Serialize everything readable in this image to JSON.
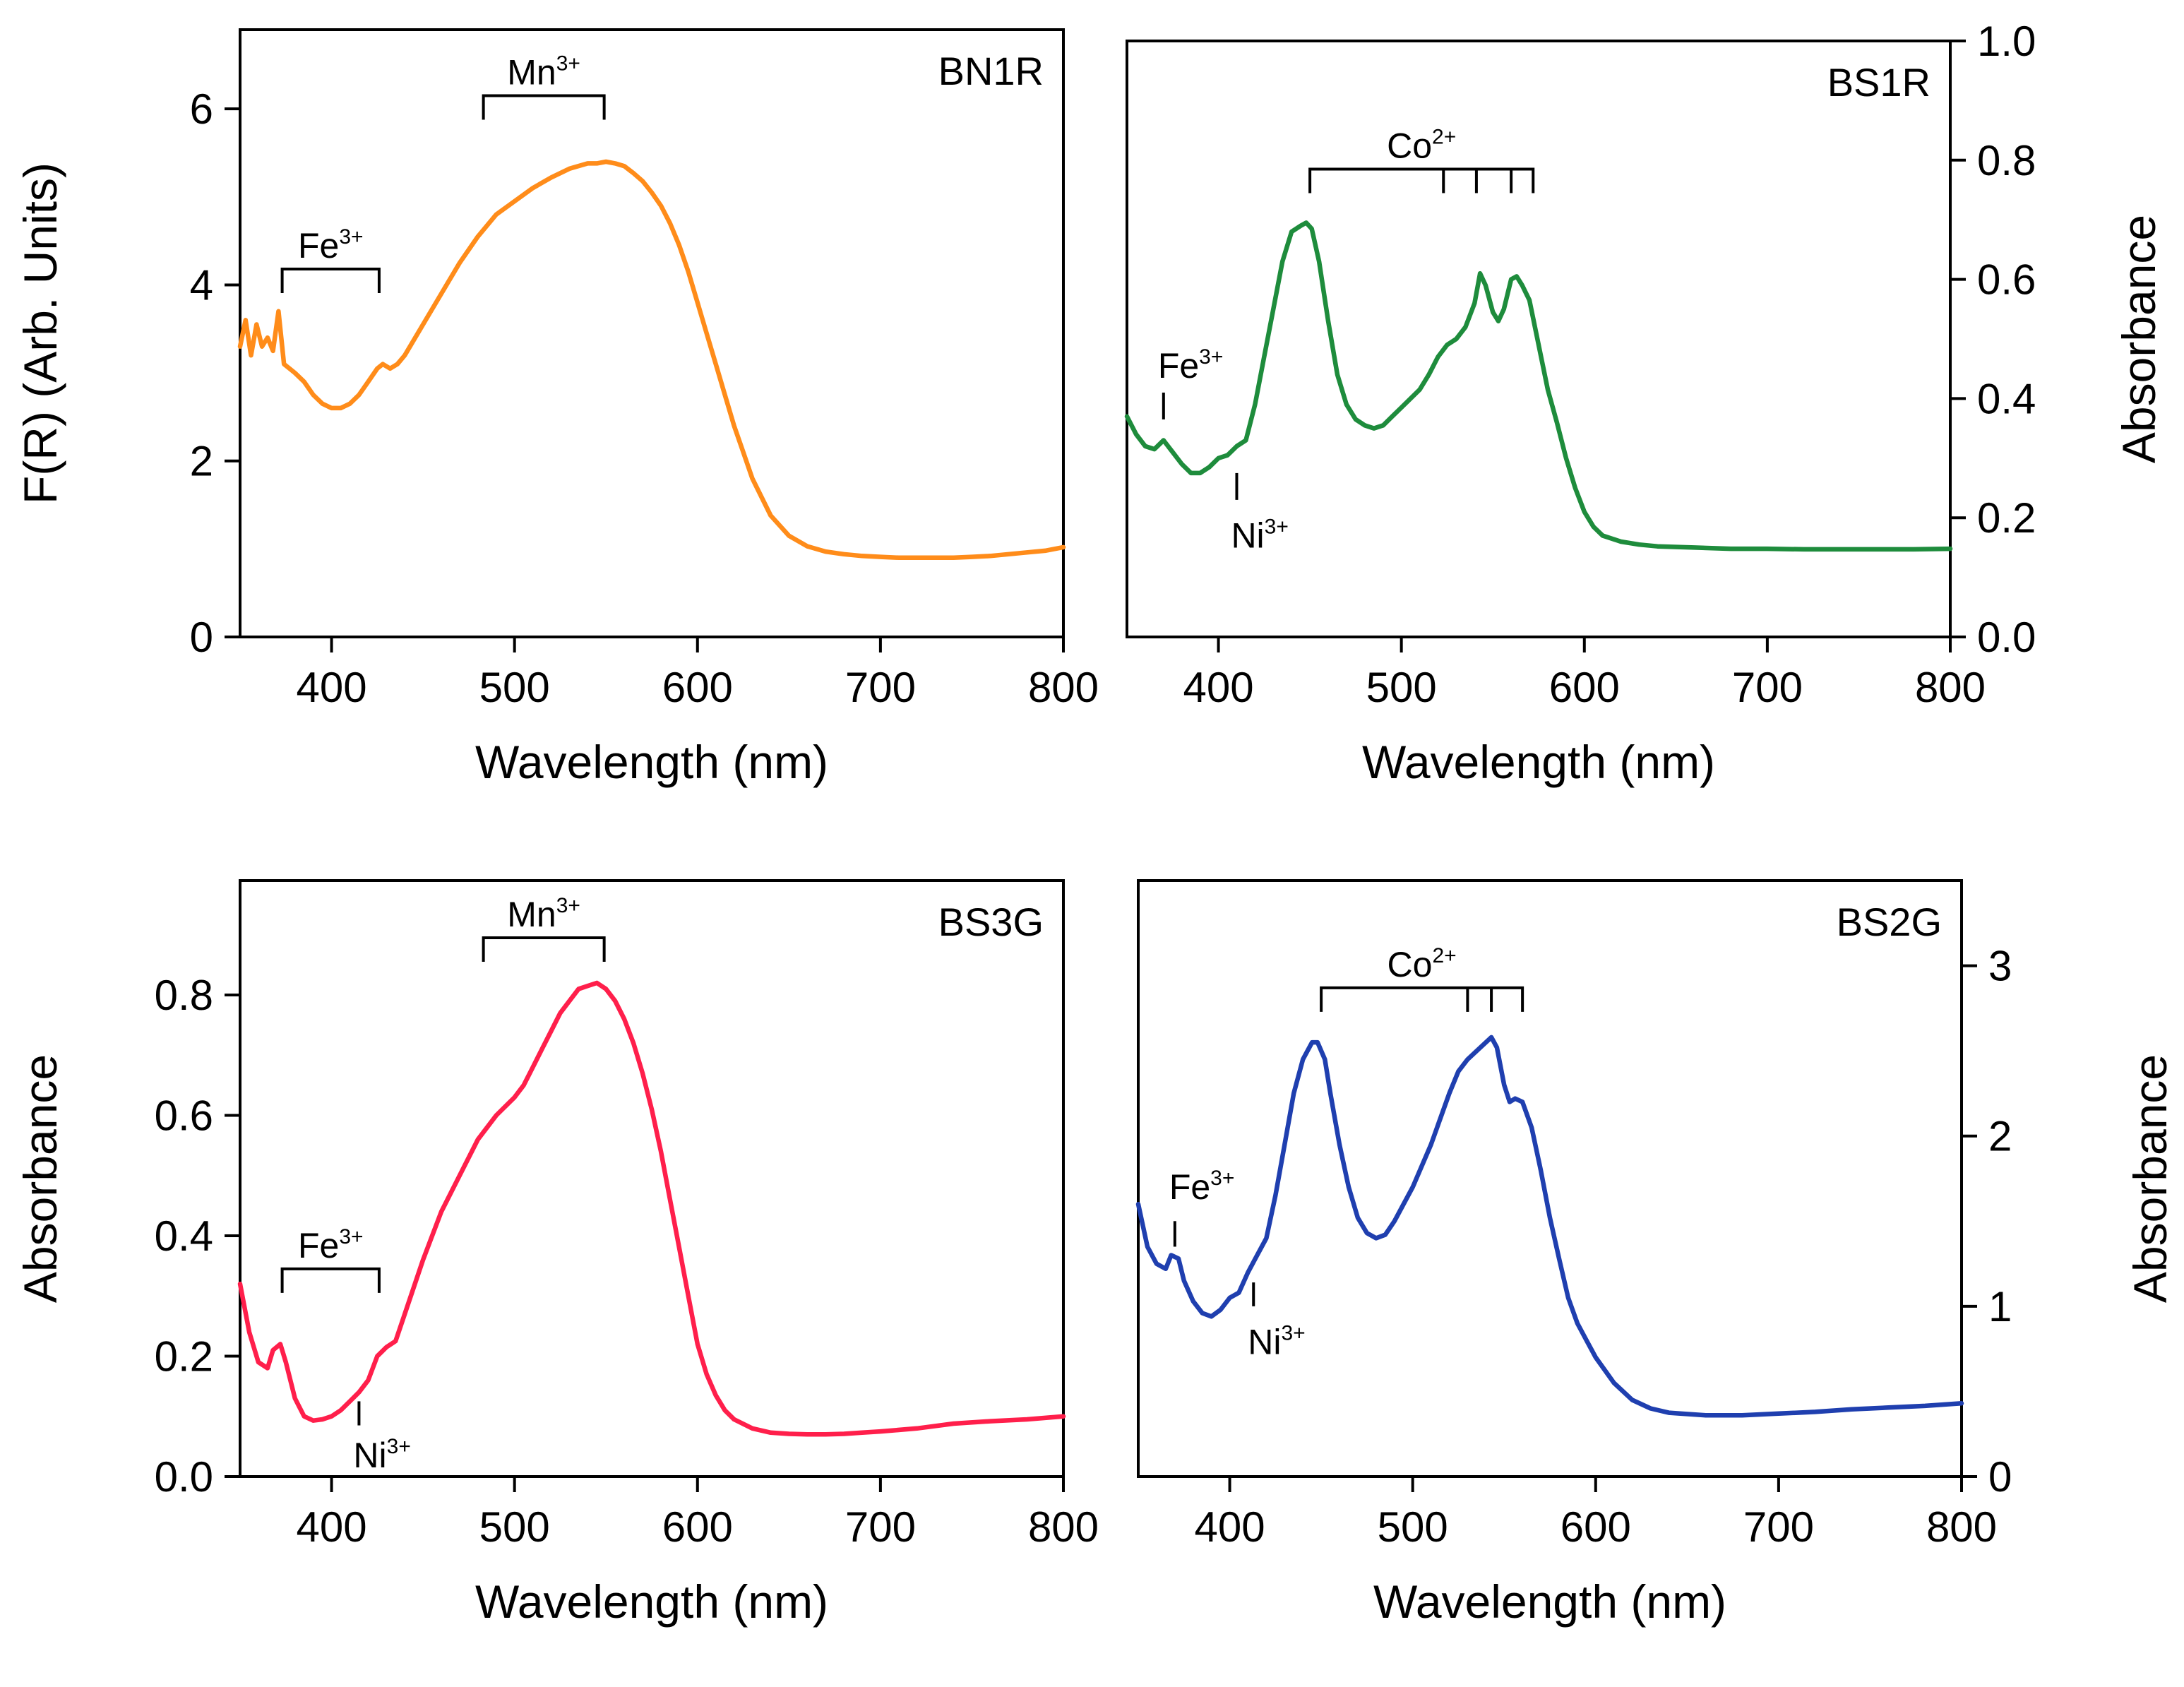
{
  "chart_data": [
    {
      "type": "line",
      "sample": "BN1R",
      "xlabel": "Wavelength (nm)",
      "ylabel": "F(R) (Arb. Units)",
      "y_axis_side": "left",
      "xlim": [
        350,
        800
      ],
      "ylim": [
        0,
        6.9
      ],
      "x_ticks": [
        400,
        500,
        600,
        700,
        800
      ],
      "y_ticks": [
        0,
        2,
        4,
        6
      ],
      "y_tick_labels": [
        "0",
        "2",
        "4",
        "6"
      ],
      "color": "#ff8c1a",
      "series": [
        {
          "name": "BN1R",
          "x": [
            350,
            353,
            356,
            359,
            362,
            365,
            368,
            371,
            374,
            377,
            380,
            385,
            390,
            395,
            400,
            405,
            410,
            415,
            420,
            425,
            428,
            432,
            436,
            440,
            450,
            460,
            470,
            480,
            490,
            500,
            510,
            520,
            530,
            540,
            545,
            550,
            555,
            560,
            565,
            570,
            575,
            580,
            585,
            590,
            595,
            600,
            605,
            610,
            615,
            620,
            625,
            630,
            640,
            650,
            660,
            670,
            680,
            690,
            700,
            710,
            720,
            730,
            740,
            750,
            760,
            770,
            780,
            790,
            800
          ],
          "y": [
            3.3,
            3.6,
            3.2,
            3.55,
            3.3,
            3.4,
            3.25,
            3.7,
            3.1,
            3.05,
            3.0,
            2.9,
            2.75,
            2.65,
            2.6,
            2.6,
            2.65,
            2.75,
            2.9,
            3.05,
            3.1,
            3.05,
            3.1,
            3.2,
            3.55,
            3.9,
            4.25,
            4.55,
            4.8,
            4.95,
            5.1,
            5.22,
            5.32,
            5.38,
            5.38,
            5.4,
            5.38,
            5.35,
            5.27,
            5.18,
            5.05,
            4.9,
            4.7,
            4.45,
            4.15,
            3.8,
            3.45,
            3.1,
            2.75,
            2.4,
            2.1,
            1.8,
            1.38,
            1.15,
            1.03,
            0.97,
            0.94,
            0.92,
            0.91,
            0.9,
            0.9,
            0.9,
            0.9,
            0.91,
            0.92,
            0.94,
            0.96,
            0.98,
            1.02
          ]
        }
      ],
      "annotations": [
        {
          "type": "bracket",
          "ion": "Fe",
          "charge": "3+",
          "x_start": 373,
          "x_end": 426,
          "y": 4.18,
          "ticks_at": []
        },
        {
          "type": "bracket",
          "ion": "Mn",
          "charge": "3+",
          "x_start": 483,
          "x_end": 549,
          "y": 6.15,
          "ticks_at": []
        }
      ]
    },
    {
      "type": "line",
      "sample": "BS1R",
      "xlabel": "Wavelength (nm)",
      "ylabel": "Absorbance",
      "y_axis_side": "right",
      "xlim": [
        350,
        800
      ],
      "ylim": [
        0,
        1.0
      ],
      "x_ticks": [
        400,
        500,
        600,
        700,
        800
      ],
      "y_ticks": [
        0,
        0.2,
        0.4,
        0.6,
        0.8,
        1.0
      ],
      "y_tick_labels": [
        "0.0",
        "0.2",
        "0.4",
        "0.6",
        "0.8",
        "1.0"
      ],
      "color": "#1e8c3c",
      "series": [
        {
          "name": "BS1R",
          "x": [
            350,
            355,
            360,
            365,
            370,
            375,
            380,
            385,
            390,
            395,
            400,
            405,
            410,
            415,
            420,
            425,
            430,
            435,
            440,
            445,
            448,
            451,
            455,
            460,
            465,
            470,
            475,
            480,
            485,
            490,
            495,
            500,
            505,
            510,
            515,
            520,
            525,
            530,
            535,
            540,
            543,
            546,
            550,
            553,
            556,
            560,
            563,
            566,
            570,
            575,
            580,
            585,
            590,
            595,
            600,
            605,
            610,
            620,
            630,
            640,
            660,
            680,
            700,
            720,
            740,
            760,
            780,
            800
          ],
          "y": [
            0.37,
            0.34,
            0.32,
            0.315,
            0.33,
            0.31,
            0.29,
            0.275,
            0.275,
            0.285,
            0.3,
            0.305,
            0.32,
            0.33,
            0.39,
            0.47,
            0.55,
            0.63,
            0.68,
            0.69,
            0.695,
            0.685,
            0.63,
            0.53,
            0.44,
            0.39,
            0.365,
            0.355,
            0.35,
            0.355,
            0.37,
            0.385,
            0.4,
            0.415,
            0.44,
            0.47,
            0.49,
            0.5,
            0.52,
            0.56,
            0.61,
            0.59,
            0.545,
            0.53,
            0.55,
            0.6,
            0.605,
            0.59,
            0.565,
            0.49,
            0.415,
            0.36,
            0.3,
            0.25,
            0.21,
            0.185,
            0.17,
            0.16,
            0.155,
            0.152,
            0.15,
            0.148,
            0.148,
            0.147,
            0.147,
            0.147,
            0.147,
            0.148
          ]
        }
      ],
      "annotations": [
        {
          "type": "bracket",
          "ion": "Co",
          "charge": "2+",
          "x_start": 450,
          "x_end": 572,
          "y": 0.785,
          "ticks_at": [
            523,
            541,
            560
          ]
        },
        {
          "type": "marker",
          "ion": "Fe",
          "charge": "3+",
          "x": 370,
          "label_position": "above",
          "marker_top": 0.41,
          "marker_bottom": 0.365,
          "label_y": 0.435
        },
        {
          "type": "marker",
          "ion": "Ni",
          "charge": "3+",
          "x": 410,
          "label_position": "below",
          "marker_top": 0.275,
          "marker_bottom": 0.23,
          "label_y": 0.15
        }
      ]
    },
    {
      "type": "line",
      "sample": "BS3G",
      "xlabel": "Wavelength (nm)",
      "ylabel": "Absorbance",
      "y_axis_side": "left",
      "xlim": [
        350,
        800
      ],
      "ylim": [
        0,
        0.99
      ],
      "x_ticks": [
        400,
        500,
        600,
        700,
        800
      ],
      "y_ticks": [
        0,
        0.2,
        0.4,
        0.6,
        0.8
      ],
      "y_tick_labels": [
        "0.0",
        "0.2",
        "0.4",
        "0.6",
        "0.8"
      ],
      "color": "#ff1f4b",
      "series": [
        {
          "name": "BS3G",
          "x": [
            350,
            355,
            360,
            365,
            368,
            372,
            375,
            380,
            385,
            390,
            395,
            400,
            405,
            410,
            415,
            420,
            425,
            430,
            435,
            440,
            450,
            460,
            470,
            480,
            490,
            500,
            505,
            510,
            515,
            520,
            525,
            530,
            535,
            540,
            545,
            550,
            555,
            560,
            565,
            570,
            575,
            580,
            585,
            590,
            595,
            600,
            605,
            610,
            615,
            620,
            630,
            640,
            650,
            660,
            670,
            680,
            690,
            700,
            720,
            740,
            760,
            780,
            800
          ],
          "y": [
            0.32,
            0.24,
            0.19,
            0.18,
            0.21,
            0.22,
            0.19,
            0.13,
            0.1,
            0.093,
            0.095,
            0.1,
            0.11,
            0.125,
            0.14,
            0.16,
            0.2,
            0.215,
            0.225,
            0.27,
            0.36,
            0.44,
            0.5,
            0.56,
            0.6,
            0.63,
            0.65,
            0.68,
            0.71,
            0.74,
            0.77,
            0.79,
            0.81,
            0.815,
            0.82,
            0.81,
            0.79,
            0.76,
            0.72,
            0.67,
            0.61,
            0.54,
            0.46,
            0.38,
            0.3,
            0.22,
            0.17,
            0.135,
            0.11,
            0.095,
            0.08,
            0.073,
            0.071,
            0.07,
            0.07,
            0.071,
            0.073,
            0.075,
            0.08,
            0.088,
            0.092,
            0.095,
            0.1
          ]
        }
      ],
      "annotations": [
        {
          "type": "bracket",
          "ion": "Fe",
          "charge": "3+",
          "x_start": 373,
          "x_end": 426,
          "y": 0.345,
          "ticks_at": []
        },
        {
          "type": "bracket",
          "ion": "Mn",
          "charge": "3+",
          "x_start": 483,
          "x_end": 549,
          "y": 0.895,
          "ticks_at": []
        },
        {
          "type": "marker",
          "ion": "Ni",
          "charge": "3+",
          "x": 415,
          "label_position": "below",
          "marker_top": 0.125,
          "marker_bottom": 0.085,
          "label_y": 0.015
        }
      ]
    },
    {
      "type": "line",
      "sample": "BS2G",
      "xlabel": "Wavelength (nm)",
      "ylabel": "Absorbance",
      "y_axis_side": "right",
      "xlim": [
        350,
        800
      ],
      "ylim": [
        0,
        3.5
      ],
      "x_ticks": [
        400,
        500,
        600,
        700,
        800
      ],
      "y_ticks": [
        0,
        1,
        2,
        3
      ],
      "y_tick_labels": [
        "0",
        "1",
        "2",
        "3"
      ],
      "color": "#1f3faf",
      "series": [
        {
          "name": "BS2G",
          "x": [
            350,
            355,
            360,
            365,
            368,
            372,
            375,
            380,
            385,
            390,
            395,
            400,
            405,
            410,
            415,
            420,
            425,
            430,
            435,
            440,
            445,
            448,
            452,
            455,
            460,
            465,
            470,
            475,
            480,
            485,
            490,
            500,
            510,
            520,
            525,
            530,
            535,
            540,
            543,
            546,
            550,
            553,
            556,
            560,
            565,
            570,
            575,
            580,
            585,
            590,
            595,
            600,
            610,
            620,
            630,
            640,
            660,
            680,
            700,
            720,
            740,
            760,
            780,
            800
          ],
          "y": [
            1.6,
            1.35,
            1.25,
            1.22,
            1.3,
            1.28,
            1.15,
            1.03,
            0.96,
            0.94,
            0.98,
            1.05,
            1.08,
            1.2,
            1.3,
            1.4,
            1.65,
            1.95,
            2.25,
            2.45,
            2.55,
            2.55,
            2.45,
            2.25,
            1.95,
            1.7,
            1.52,
            1.43,
            1.4,
            1.42,
            1.5,
            1.7,
            1.95,
            2.25,
            2.38,
            2.45,
            2.5,
            2.55,
            2.58,
            2.52,
            2.3,
            2.2,
            2.22,
            2.2,
            2.05,
            1.8,
            1.52,
            1.28,
            1.05,
            0.9,
            0.8,
            0.7,
            0.55,
            0.45,
            0.4,
            0.375,
            0.36,
            0.36,
            0.37,
            0.38,
            0.395,
            0.405,
            0.415,
            0.43
          ]
        }
      ],
      "annotations": [
        {
          "type": "bracket",
          "ion": "Co",
          "charge": "2+",
          "x_start": 450,
          "x_end": 560,
          "y": 2.87,
          "ticks_at": [
            530,
            543
          ]
        },
        {
          "type": "marker",
          "ion": "Fe",
          "charge": "3+",
          "x": 370,
          "label_position": "above",
          "marker_top": 1.5,
          "marker_bottom": 1.35,
          "label_y": 1.63
        },
        {
          "type": "marker",
          "ion": "Ni",
          "charge": "3+",
          "x": 413,
          "label_position": "below",
          "marker_top": 1.14,
          "marker_bottom": 1.0,
          "label_y": 0.72
        }
      ]
    }
  ]
}
